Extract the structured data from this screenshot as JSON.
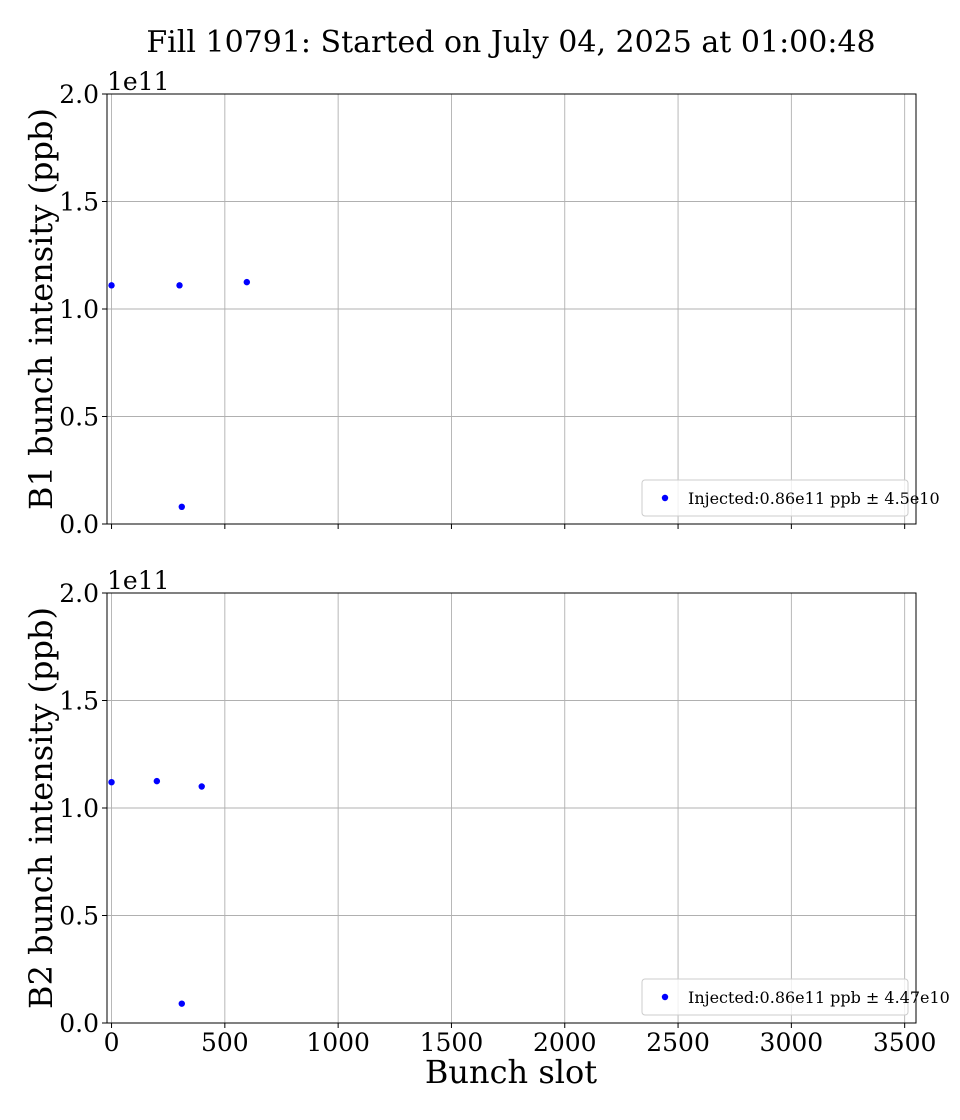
{
  "title": "Fill 10791: Started on July 04, 2025 at 01:00:48",
  "xlabel": "Bunch slot",
  "chart_data": [
    {
      "type": "scatter",
      "ylabel": "B1 bunch intensity (ppb)",
      "offset_text": "1e11",
      "xlim": [
        -20,
        3550
      ],
      "ylim": [
        0,
        2.0
      ],
      "y_scale_note": "values in units of 1e11",
      "xticks": [
        0,
        500,
        1000,
        1500,
        2000,
        2500,
        3000,
        3500
      ],
      "yticks": [
        0.0,
        0.5,
        1.0,
        1.5,
        2.0
      ],
      "ytick_labels": [
        "0.0",
        "0.5",
        "1.0",
        "1.5",
        "2.0"
      ],
      "show_xtick_labels": false,
      "grid": true,
      "legend_position": "lower-right",
      "series": [
        {
          "name": "Injected:0.86e11 ppb ± 4.5e10",
          "color": "#0000ff",
          "points": [
            [
              0,
              1.11
            ],
            [
              300,
              1.11
            ],
            [
              310,
              0.08
            ],
            [
              597,
              1.125
            ]
          ]
        }
      ]
    },
    {
      "type": "scatter",
      "ylabel": "B2 bunch intensity (ppb)",
      "offset_text": "1e11",
      "xlim": [
        -20,
        3550
      ],
      "ylim": [
        0,
        2.0
      ],
      "y_scale_note": "values in units of 1e11",
      "xticks": [
        0,
        500,
        1000,
        1500,
        2000,
        2500,
        3000,
        3500
      ],
      "xtick_labels": [
        "0",
        "500",
        "1000",
        "1500",
        "2000",
        "2500",
        "3000",
        "3500"
      ],
      "yticks": [
        0.0,
        0.5,
        1.0,
        1.5,
        2.0
      ],
      "ytick_labels": [
        "0.0",
        "0.5",
        "1.0",
        "1.5",
        "2.0"
      ],
      "show_xtick_labels": true,
      "grid": true,
      "legend_position": "lower-right",
      "series": [
        {
          "name": "Injected:0.86e11 ppb ± 4.47e10",
          "color": "#0000ff",
          "points": [
            [
              0,
              1.12
            ],
            [
              200,
              1.125
            ],
            [
              398,
              1.1
            ],
            [
              310,
              0.09
            ]
          ]
        }
      ]
    }
  ]
}
